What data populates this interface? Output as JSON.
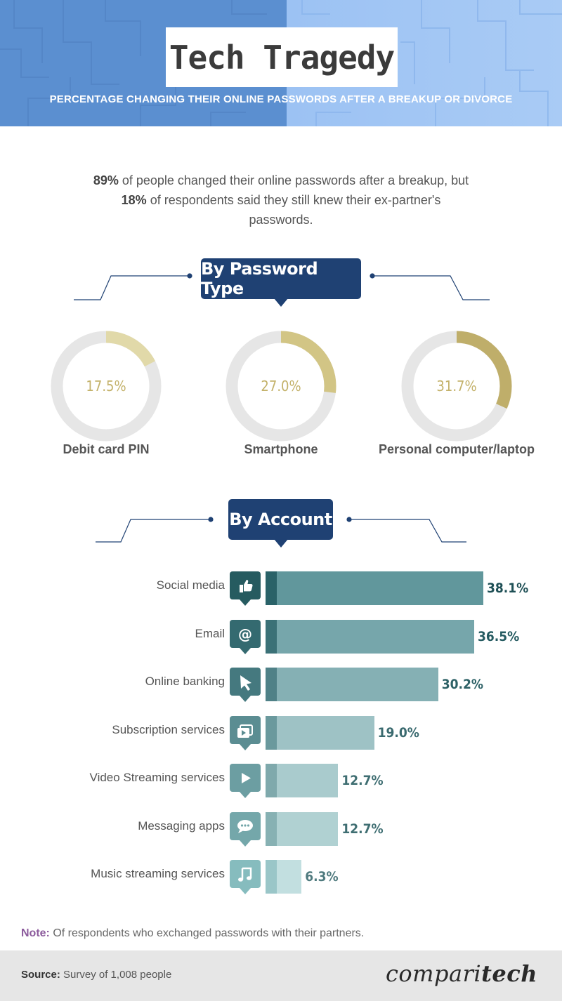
{
  "header": {
    "title": "Tech Tragedy",
    "subtitle": "PERCENTAGE CHANGING THEIR ONLINE PASSWORDS AFTER A BREAKUP OR DIVORCE"
  },
  "intro": {
    "stat1": "89%",
    "text1": " of people changed their online passwords after a breakup, but ",
    "stat2": "18%",
    "text2": " of respondents said they still knew their ex-partner's passwords."
  },
  "sections": {
    "password_type": "By Password Type",
    "account": "By Account"
  },
  "note": {
    "label": "Note:",
    "text": " Of respondents who exchanged passwords with their partners."
  },
  "footer": {
    "source_label": "Source:",
    "source_text": " Survey of 1,008 people",
    "brand_light": "compari",
    "brand_bold": "tech"
  },
  "chart_data": [
    {
      "type": "pie",
      "title": "By Password Type",
      "categories": [
        "Debit card PIN",
        "Smartphone",
        "Personal computer/laptop"
      ],
      "values": [
        17.5,
        27.0,
        31.7
      ],
      "value_labels": [
        "17.5%",
        "27.0%",
        "31.7%"
      ],
      "unit": "%",
      "colors": [
        "#e1d9a9",
        "#d2c585",
        "#bfae6a"
      ],
      "track_color": "#e6e6e6"
    },
    {
      "type": "bar",
      "title": "By Account",
      "orientation": "horizontal",
      "categories": [
        "Social media",
        "Email",
        "Online banking",
        "Subscription services",
        "Video Streaming services",
        "Messaging apps",
        "Music streaming services"
      ],
      "values": [
        38.1,
        36.5,
        30.2,
        19.0,
        12.7,
        12.7,
        6.3
      ],
      "value_labels": [
        "38.1%",
        "36.5%",
        "30.2%",
        "19.0%",
        "12.7%",
        "12.7%",
        "6.3%"
      ],
      "icons": [
        "thumbs-up-icon",
        "at-sign-icon",
        "cursor-arrow-icon",
        "subscription-play-icon",
        "play-icon",
        "chat-bubble-icon",
        "music-note-icon"
      ],
      "bar_colors": [
        "#61979c",
        "#76a6ab",
        "#85b0b4",
        "#9ec2c5",
        "#a9cbcd",
        "#b0d1d2",
        "#c2dfe0"
      ],
      "stripe_colors": [
        "#2a6268",
        "#3b7177",
        "#4f8187",
        "#6a999d",
        "#7fa9ac",
        "#87b1b3",
        "#9ac6c8"
      ],
      "icon_colors": [
        "#265b60",
        "#346a70",
        "#45797f",
        "#5b8d92",
        "#6c9ea2",
        "#74a7aa",
        "#86bcbe"
      ],
      "label_colors": [
        "#1f5056",
        "#245a60",
        "#2d6166",
        "#3a6a6f",
        "#3f6e72",
        "#3f6e72",
        "#4f7a7e"
      ],
      "xlim": [
        0,
        40
      ],
      "unit": "%"
    }
  ]
}
